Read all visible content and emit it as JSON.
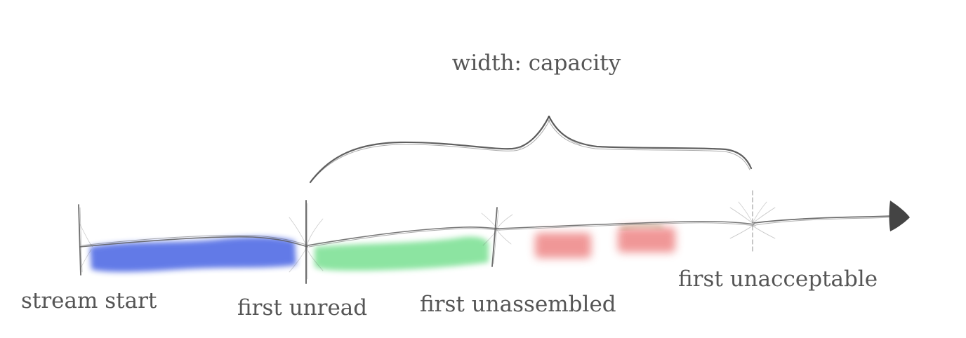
{
  "title": "width: capacity",
  "labels": {
    "stream_start": "stream start",
    "first_unread": "first unread",
    "first_unassembled": "first unassembled",
    "first_unacceptable": "first unacceptable"
  },
  "colors": {
    "read_segment": "#5a73e6",
    "assembled_segment": "#86e39c",
    "unassembled_segment": "#ef8c8c",
    "stroke": "#444444",
    "label": "#555555"
  }
}
